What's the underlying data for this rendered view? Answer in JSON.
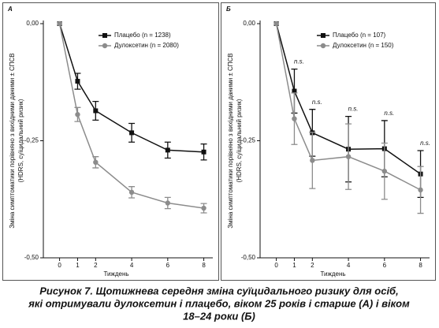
{
  "chart_data": [
    {
      "type": "line",
      "panel_label": "А",
      "y_label": [
        "Зміна симптоматики порівняно з вихідними даними ± СПСВ",
        "(HDRS, суїцидальний ризик)"
      ],
      "x_label": "Тиждень",
      "x": [
        0,
        1,
        2,
        4,
        6,
        8
      ],
      "xlim": [
        -0.9,
        8.5
      ],
      "xticks": [
        0,
        1,
        2,
        4,
        6,
        8
      ],
      "ylim": [
        -0.5,
        0
      ],
      "yticks": [
        {
          "value": 0,
          "label": "0,00"
        },
        {
          "value": -0.25,
          "label": "-0,25"
        },
        {
          "value": -0.5,
          "label": "-0,50"
        }
      ],
      "legend": "upper-center",
      "series": [
        {
          "name": "Плацебо (n = 1238)",
          "color": "#111111",
          "marker": "square",
          "values": [
            0,
            -0.123,
            -0.186,
            -0.233,
            -0.27,
            -0.274
          ],
          "errors": [
            0,
            0.017,
            0.02,
            0.02,
            0.017,
            0.017
          ]
        },
        {
          "name": "Дулоксетин (n = 2080)",
          "color": "#8c8c8c",
          "marker": "circle",
          "values": [
            0,
            -0.194,
            -0.296,
            -0.36,
            -0.383,
            -0.394
          ],
          "errors": [
            0,
            0.015,
            0.012,
            0.012,
            0.012,
            0.01
          ]
        }
      ]
    },
    {
      "type": "line",
      "panel_label": "Б",
      "y_label": [
        "Зміна симптоматики порівняно з вихідними даними ± СПСВ",
        "(HDRS, суїцидальний ризик)"
      ],
      "x_label": "Тиждень",
      "x": [
        0,
        1,
        2,
        4,
        6,
        8
      ],
      "xlim": [
        -0.9,
        8.5
      ],
      "xticks": [
        0,
        1,
        2,
        4,
        6,
        8
      ],
      "ylim": [
        -0.5,
        0
      ],
      "yticks": [
        {
          "value": 0,
          "label": "0,00"
        },
        {
          "value": -0.25,
          "label": "-0,25"
        },
        {
          "value": -0.5,
          "label": "-0,50"
        }
      ],
      "legend": "upper-center",
      "series": [
        {
          "name": "Плацебо (n = 107)",
          "color": "#111111",
          "marker": "square",
          "values": [
            0,
            -0.144,
            -0.233,
            -0.268,
            -0.267,
            -0.321
          ],
          "errors": [
            0,
            0.047,
            0.05,
            0.07,
            0.06,
            0.05
          ]
        },
        {
          "name": "Дулоксетин (n = 150)",
          "color": "#8c8c8c",
          "marker": "circle",
          "values": [
            0,
            -0.203,
            -0.292,
            -0.284,
            -0.315,
            -0.355
          ],
          "errors": [
            0,
            0.055,
            0.06,
            0.07,
            0.06,
            0.05
          ]
        }
      ],
      "annotations": [
        {
          "x": 1,
          "text": "n.s."
        },
        {
          "x": 2,
          "text": "n.s."
        },
        {
          "x": 4,
          "text": "n.s."
        },
        {
          "x": 6,
          "text": "n.s."
        },
        {
          "x": 8,
          "text": "n.s."
        }
      ]
    }
  ],
  "caption": [
    "Рисунок 7. Щотижнева середня зміна суїцидального ризику для осіб,",
    "які отримували дулоксетин і плацебо, віком 25 років і старше (А) і віком",
    "18–24 роки (Б)"
  ]
}
